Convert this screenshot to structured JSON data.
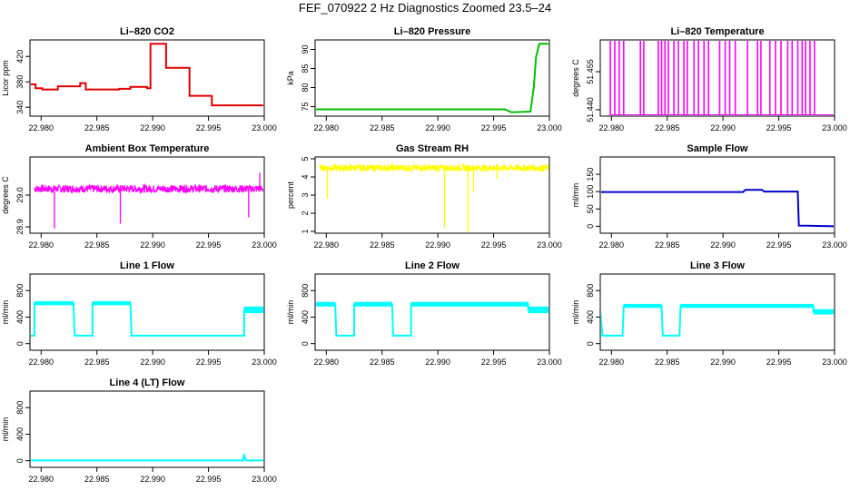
{
  "page_title": "FEF_070922  2 Hz Diagnostics Zoomed 23.5–24",
  "chart_data": [
    {
      "type": "line",
      "title": "Li–820 CO2",
      "ylabel": "Licor ppm",
      "xlim": [
        22.979,
        23.0
      ],
      "ylim": [
        326,
        446
      ],
      "xticks": [
        "22.980",
        "22.985",
        "22.990",
        "22.995",
        "23.000"
      ],
      "yticks": [
        "340",
        "380",
        "420"
      ],
      "color": "#e00000",
      "style": "step",
      "series": [
        {
          "x": [
            22.979,
            22.9795,
            22.9801,
            22.9815,
            22.9835,
            22.984,
            22.9855,
            22.987,
            22.988,
            22.9895,
            22.9898,
            22.9899,
            22.9911,
            22.9912,
            22.9932,
            22.9933,
            22.9952,
            22.9953,
            23.0
          ],
          "y": [
            376,
            370,
            368,
            373,
            378,
            368,
            368,
            369,
            372,
            370,
            440,
            440,
            440,
            402,
            402,
            358,
            358,
            343,
            343
          ]
        }
      ]
    },
    {
      "type": "line",
      "title": "Li–820 Pressure",
      "ylabel": "kPa",
      "xlim": [
        22.979,
        23.0
      ],
      "ylim": [
        72.5,
        92.5
      ],
      "xticks": [
        "22.980",
        "22.985",
        "22.990",
        "22.995",
        "23.000"
      ],
      "yticks": [
        "75",
        "80",
        "85",
        "90"
      ],
      "color": "#00c000",
      "series": [
        {
          "x": [
            22.979,
            22.996,
            22.9966,
            22.9983,
            22.9986,
            22.9988,
            22.9991,
            23.0
          ],
          "y": [
            74.3,
            74.3,
            73.5,
            73.7,
            80,
            88,
            91.5,
            91.5
          ]
        }
      ]
    },
    {
      "type": "line",
      "title": "Li–820 Temperature",
      "ylabel": "degrees C",
      "xlim": [
        22.979,
        23.0
      ],
      "ylim": [
        51.4375,
        51.4675
      ],
      "xticks": [
        "22.980",
        "22.985",
        "22.990",
        "22.995",
        "23.000"
      ],
      "yticks": [
        "51.440",
        "51.455"
      ],
      "color": "#ff00ff",
      "style": "spikes",
      "baseline": 51.4375,
      "top": 51.4675,
      "spikes_x": [
        22.9799,
        22.9803,
        22.9807,
        22.9811,
        22.9826,
        22.9829,
        22.9842,
        22.9845,
        22.9848,
        22.9851,
        22.9856,
        22.986,
        22.9865,
        22.9868,
        22.9874,
        22.9878,
        22.9883,
        22.9887,
        22.9897,
        22.9902,
        22.9906,
        22.9911,
        22.9922,
        22.9931,
        22.9934,
        22.9942,
        22.9947,
        22.9952,
        22.9958,
        22.9962,
        22.9967,
        22.9971,
        22.9974,
        22.9978,
        22.9982
      ]
    },
    {
      "type": "line",
      "title": "Ambient Box Temperature",
      "ylabel": "degrees C",
      "xlim": [
        22.979,
        23.0
      ],
      "ylim": [
        28.88,
        29.12
      ],
      "xticks": [
        "22.980",
        "22.985",
        "22.990",
        "22.995",
        "23.000"
      ],
      "yticks": [
        "28.9",
        "29.0"
      ],
      "color": "#ff00ff",
      "style": "noise",
      "base": 29.02,
      "amp": 0.012,
      "spikes": [
        {
          "x": 22.9812,
          "y": 28.895
        },
        {
          "x": 22.9871,
          "y": 28.91
        },
        {
          "x": 22.9986,
          "y": 28.93
        },
        {
          "x": 22.9996,
          "y": 29.07
        }
      ]
    },
    {
      "type": "line",
      "title": "Gas Stream RH",
      "ylabel": "percent",
      "xlim": [
        22.979,
        23.0
      ],
      "ylim": [
        0.9,
        5.1
      ],
      "xticks": [
        "22.980",
        "22.985",
        "22.990",
        "22.995",
        "23.000"
      ],
      "yticks": [
        "1",
        "2",
        "3",
        "4",
        "5"
      ],
      "color": "#ffff00",
      "style": "noise",
      "base": 4.5,
      "amp": 0.18,
      "spikes": [
        {
          "x": 22.9801,
          "y": 2.8
        },
        {
          "x": 22.9906,
          "y": 1.2
        },
        {
          "x": 22.9927,
          "y": 0.9
        },
        {
          "x": 22.9932,
          "y": 3.2
        },
        {
          "x": 22.9953,
          "y": 3.9
        }
      ]
    },
    {
      "type": "line",
      "title": "Sample Flow",
      "ylabel": "ml/min",
      "xlim": [
        22.979,
        23.0
      ],
      "ylim": [
        -20,
        200
      ],
      "xticks": [
        "22.980",
        "22.985",
        "22.990",
        "22.995",
        "23.000"
      ],
      "yticks": [
        "0",
        "50",
        "100",
        "150"
      ],
      "color": "#0000cc",
      "series": [
        {
          "x": [
            22.979,
            22.9918,
            22.992,
            22.9935,
            22.9937,
            22.9965,
            22.9967,
            22.9968,
            23.0
          ],
          "y": [
            99,
            99,
            105,
            105,
            100,
            100,
            100,
            2,
            0
          ]
        }
      ]
    },
    {
      "type": "line",
      "title": "Line 1 Flow",
      "ylabel": "ml/min",
      "xlim": [
        22.979,
        23.0
      ],
      "ylim": [
        -100,
        1050
      ],
      "xticks": [
        "22.980",
        "22.985",
        "22.990",
        "22.995",
        "23.000"
      ],
      "yticks": [
        "0",
        "400",
        "800"
      ],
      "color": "#00ffff",
      "bands": [
        {
          "x0": 22.9794,
          "x1": 22.9829,
          "y0": 580,
          "y1": 640
        },
        {
          "x0": 22.9846,
          "x1": 22.988,
          "y0": 580,
          "y1": 640
        },
        {
          "x0": 22.9982,
          "x1": 23.0,
          "y0": 460,
          "y1": 560
        }
      ],
      "series": [
        {
          "x": [
            22.979,
            22.9794,
            22.9794,
            22.9829,
            22.983,
            22.9846,
            22.9846,
            22.988,
            22.9881,
            22.9982,
            22.9982,
            23.0
          ],
          "y": [
            120,
            120,
            610,
            610,
            120,
            120,
            610,
            610,
            120,
            120,
            510,
            510
          ]
        }
      ]
    },
    {
      "type": "line",
      "title": "Line 2 Flow",
      "ylabel": "ml/min",
      "xlim": [
        22.979,
        23.0
      ],
      "ylim": [
        -100,
        1050
      ],
      "xticks": [
        "22.980",
        "22.985",
        "22.990",
        "22.995",
        "23.000"
      ],
      "yticks": [
        "0",
        "400",
        "800"
      ],
      "color": "#00ffff",
      "bands": [
        {
          "x0": 22.9791,
          "x1": 22.9808,
          "y0": 560,
          "y1": 630
        },
        {
          "x0": 22.9825,
          "x1": 22.9859,
          "y0": 560,
          "y1": 630
        },
        {
          "x0": 22.9876,
          "x1": 22.9981,
          "y0": 560,
          "y1": 630
        },
        {
          "x0": 22.9981,
          "x1": 23.0,
          "y0": 460,
          "y1": 560
        }
      ],
      "series": [
        {
          "x": [
            22.979,
            22.9808,
            22.9809,
            22.9825,
            22.9825,
            22.9859,
            22.986,
            22.9876,
            22.9876,
            22.9981,
            22.9981,
            23.0
          ],
          "y": [
            595,
            595,
            120,
            120,
            595,
            595,
            120,
            120,
            595,
            595,
            510,
            510
          ]
        }
      ]
    },
    {
      "type": "line",
      "title": "Line 3 Flow",
      "ylabel": "ml/min",
      "xlim": [
        22.979,
        23.0
      ],
      "ylim": [
        -100,
        1050
      ],
      "xticks": [
        "22.980",
        "22.985",
        "22.990",
        "22.995",
        "23.000"
      ],
      "yticks": [
        "0",
        "400",
        "800"
      ],
      "color": "#00ffff",
      "bands": [
        {
          "x0": 22.9811,
          "x1": 22.9845,
          "y0": 540,
          "y1": 600
        },
        {
          "x0": 22.9862,
          "x1": 22.9981,
          "y0": 540,
          "y1": 600
        },
        {
          "x0": 22.9981,
          "x1": 23.0,
          "y0": 440,
          "y1": 520
        }
      ],
      "series": [
        {
          "x": [
            22.979,
            22.979,
            22.9792,
            22.981,
            22.9811,
            22.9845,
            22.9846,
            22.9861,
            22.9862,
            22.9981,
            22.9981,
            23.0
          ],
          "y": [
            120,
            520,
            120,
            120,
            570,
            570,
            120,
            120,
            570,
            570,
            480,
            480
          ]
        }
      ]
    },
    {
      "type": "line",
      "title": "Line 4 (LT) Flow",
      "ylabel": "ml/min",
      "xlim": [
        22.979,
        23.0
      ],
      "ylim": [
        -100,
        1050
      ],
      "xticks": [
        "22.980",
        "22.985",
        "22.990",
        "22.995",
        "23.000"
      ],
      "yticks": [
        "0",
        "400",
        "800"
      ],
      "color": "#00ffff",
      "series": [
        {
          "x": [
            22.979,
            22.9981,
            22.9982,
            22.9983,
            22.9984,
            23.0
          ],
          "y": [
            5,
            5,
            100,
            20,
            5,
            5
          ]
        }
      ]
    }
  ]
}
